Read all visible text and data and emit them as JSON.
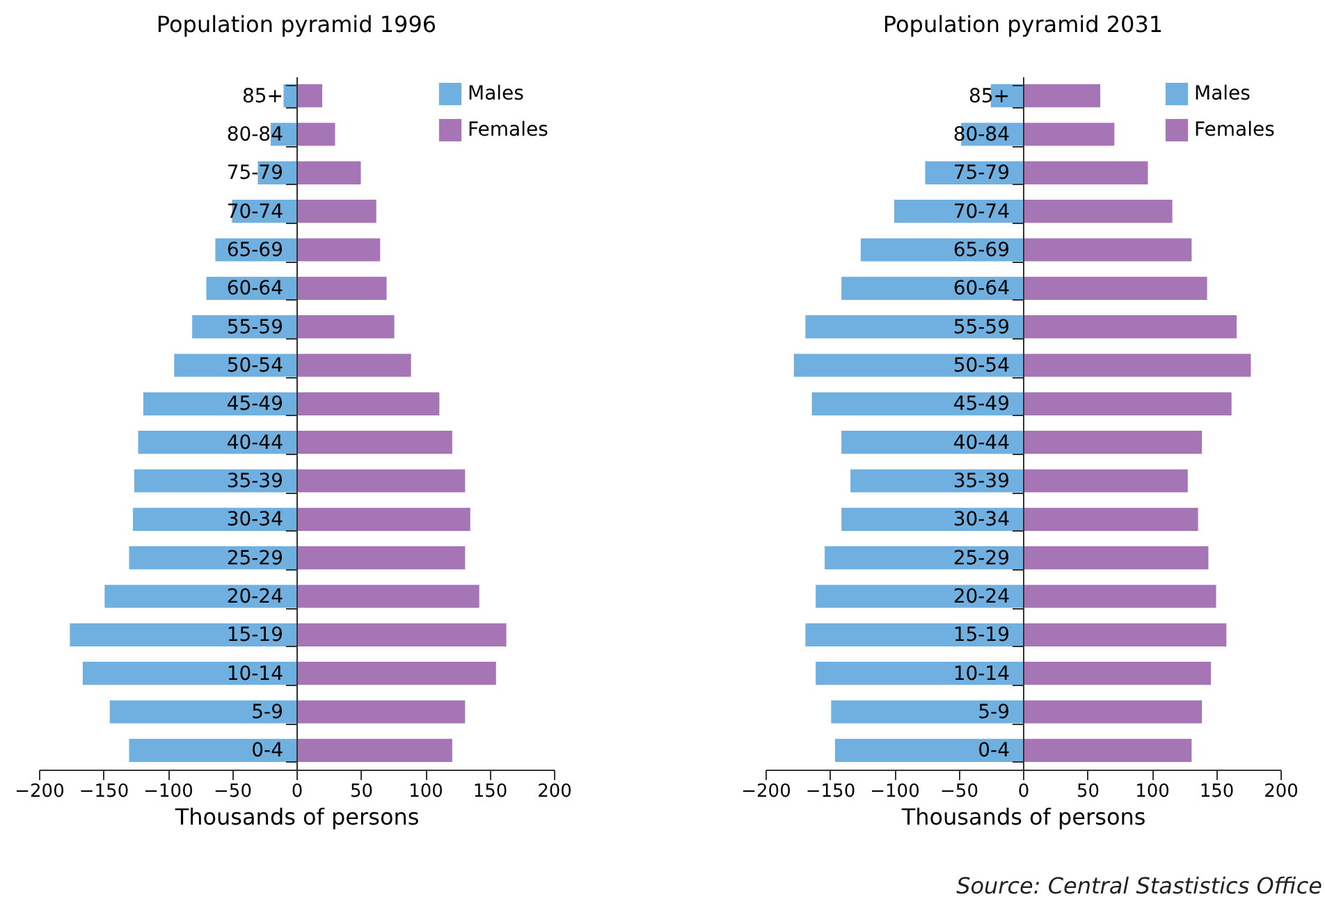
{
  "chart_data": [
    {
      "type": "bar",
      "orientation": "horizontal",
      "stacked": true,
      "title": "Population pyramid 1996",
      "xlabel": "Thousands of persons",
      "categories": [
        "85+",
        "80-84",
        "75-79",
        "70-74",
        "65-69",
        "60-64",
        "55-59",
        "50-54",
        "45-49",
        "40-44",
        "35-39",
        "30-34",
        "25-29",
        "20-24",
        "15-19",
        "10-14",
        "5-9",
        "0-4"
      ],
      "series": [
        {
          "name": "Males",
          "color": "#6fb0e0",
          "values": [
            -10,
            -20,
            -30,
            -50,
            -63,
            -70,
            -81,
            -95,
            -119,
            -123,
            -126,
            -127,
            -130,
            -149,
            -176,
            -166,
            -145,
            -130
          ]
        },
        {
          "name": "Females",
          "color": "#a675b5",
          "values": [
            20,
            30,
            50,
            62,
            65,
            70,
            76,
            89,
            111,
            121,
            131,
            135,
            131,
            142,
            163,
            155,
            131,
            121
          ]
        }
      ],
      "xlim": [
        -200,
        200
      ],
      "xticks": [
        -200,
        -150,
        -100,
        -50,
        0,
        50,
        100,
        150,
        200
      ],
      "legend": "top right"
    },
    {
      "type": "bar",
      "orientation": "horizontal",
      "stacked": true,
      "title": "Population pyramid 2031",
      "xlabel": "Thousands of persons",
      "categories": [
        "85+",
        "80-84",
        "75-79",
        "70-74",
        "65-69",
        "60-64",
        "55-59",
        "50-54",
        "45-49",
        "40-44",
        "35-39",
        "30-34",
        "25-29",
        "20-24",
        "15-19",
        "10-14",
        "5-9",
        "0-4"
      ],
      "series": [
        {
          "name": "Males",
          "color": "#6fb0e0",
          "values": [
            -25,
            -48,
            -76,
            -100,
            -126,
            -141,
            -169,
            -178,
            -164,
            -141,
            -134,
            -141,
            -154,
            -161,
            -169,
            -161,
            -149,
            -146
          ]
        },
        {
          "name": "Females",
          "color": "#a675b5",
          "values": [
            60,
            71,
            97,
            116,
            131,
            143,
            166,
            177,
            162,
            139,
            128,
            136,
            144,
            150,
            158,
            146,
            139,
            131
          ]
        }
      ],
      "xlim": [
        -200,
        200
      ],
      "xticks": [
        -200,
        -150,
        -100,
        -50,
        0,
        50,
        100,
        150,
        200
      ],
      "legend": "top right",
      "annotations": [
        "Source: Central Stastistics Office"
      ]
    }
  ]
}
